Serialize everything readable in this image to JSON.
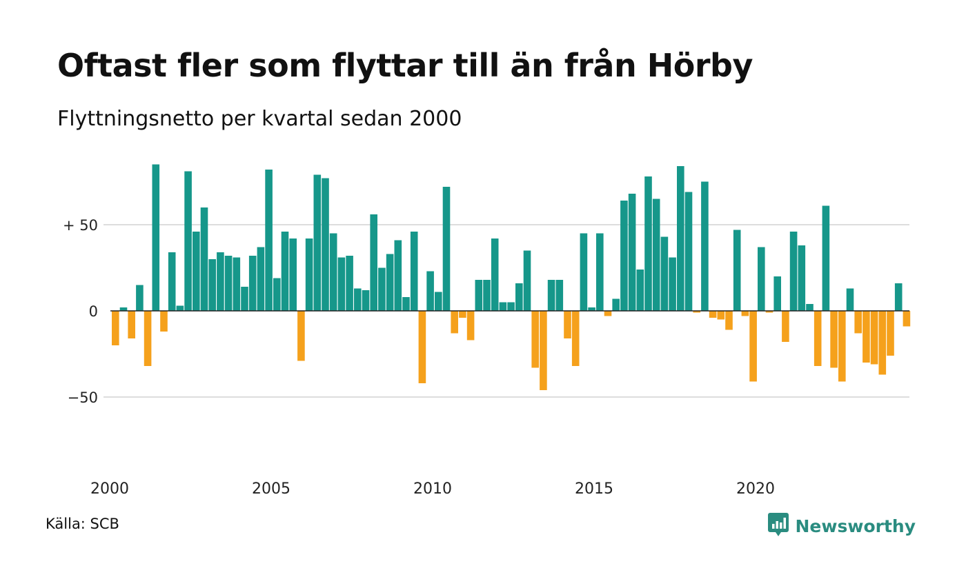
{
  "title": "Oftast fler som flyttar till än från Hörby",
  "subtitle": "Flyttningsnetto per kvartal sedan 2000",
  "source": "Källa: SCB",
  "brand": {
    "name": "Newsworthy",
    "icon": "newsworthy-logo-icon",
    "color": "#2a8c80"
  },
  "chart_data": {
    "type": "bar",
    "title": "Oftast fler som flyttar till än från Hörby",
    "subtitle": "Flyttningsnetto per kvartal sedan 2000",
    "x_start": "2000",
    "x_tick_labels": [
      "2000",
      "2005",
      "2010",
      "2015",
      "2020"
    ],
    "y_ticks": [
      {
        "value": 50,
        "label": "+ 50"
      },
      {
        "value": 0,
        "label": "0"
      },
      {
        "value": -50,
        "label": "−50"
      }
    ],
    "ylim": [
      -85,
      85
    ],
    "grid": true,
    "colors": {
      "positive": "#16978a",
      "negative": "#f5a11c",
      "grid": "#dddddd",
      "zero_line": "#222222"
    },
    "values": [
      -20,
      2,
      -16,
      15,
      -32,
      85,
      -12,
      34,
      3,
      81,
      46,
      60,
      30,
      34,
      32,
      31,
      14,
      32,
      37,
      82,
      19,
      46,
      42,
      -29,
      42,
      79,
      77,
      45,
      31,
      32,
      13,
      12,
      56,
      25,
      33,
      41,
      8,
      46,
      -42,
      23,
      11,
      72,
      -13,
      -4,
      -17,
      18,
      18,
      42,
      5,
      5,
      16,
      35,
      -33,
      -46,
      18,
      18,
      -16,
      -32,
      45,
      2,
      45,
      -3,
      7,
      64,
      68,
      24,
      78,
      65,
      43,
      31,
      84,
      69,
      -1,
      75,
      -4,
      -5,
      -11,
      47,
      -3,
      -41,
      37,
      -1,
      20,
      -18,
      46,
      38,
      4,
      -32,
      61,
      -33,
      -41,
      13,
      -13,
      -30,
      -31,
      -37,
      -26,
      16,
      -9
    ]
  }
}
